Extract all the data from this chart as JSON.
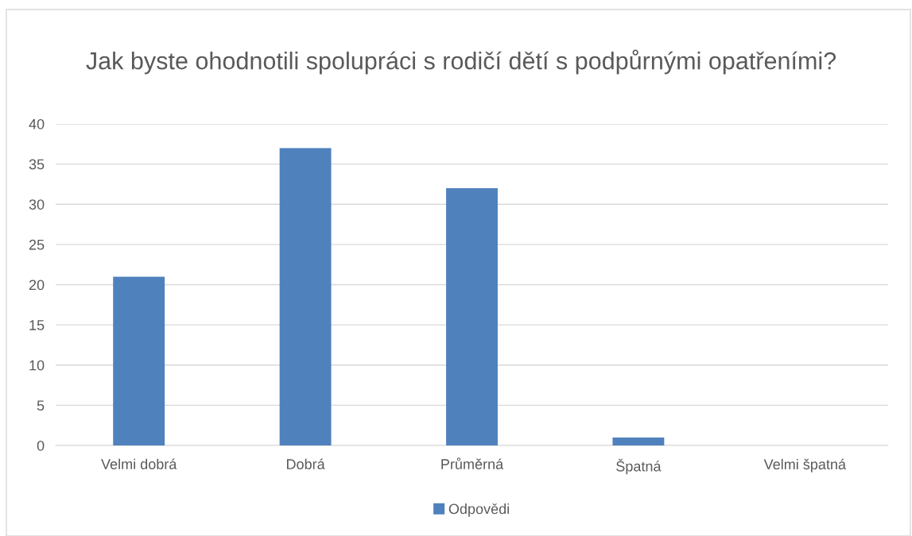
{
  "chart_data": {
    "type": "bar",
    "title": "Jak byste ohodnotili spolupráci s rodičí dětí s podpůrnými opatřeními?",
    "categories": [
      "Velmi dobrá",
      "Dobrá",
      "Průměrná",
      "Špatná",
      "Velmi špatná"
    ],
    "series": [
      {
        "name": "Odpovědi",
        "color": "#4f81bd",
        "values": [
          21,
          37,
          32,
          1,
          0
        ]
      }
    ],
    "ylim": [
      0,
      40
    ],
    "yticks": [
      0,
      5,
      10,
      15,
      20,
      25,
      30,
      35,
      40
    ],
    "grid": "y",
    "legend": "bottom"
  }
}
